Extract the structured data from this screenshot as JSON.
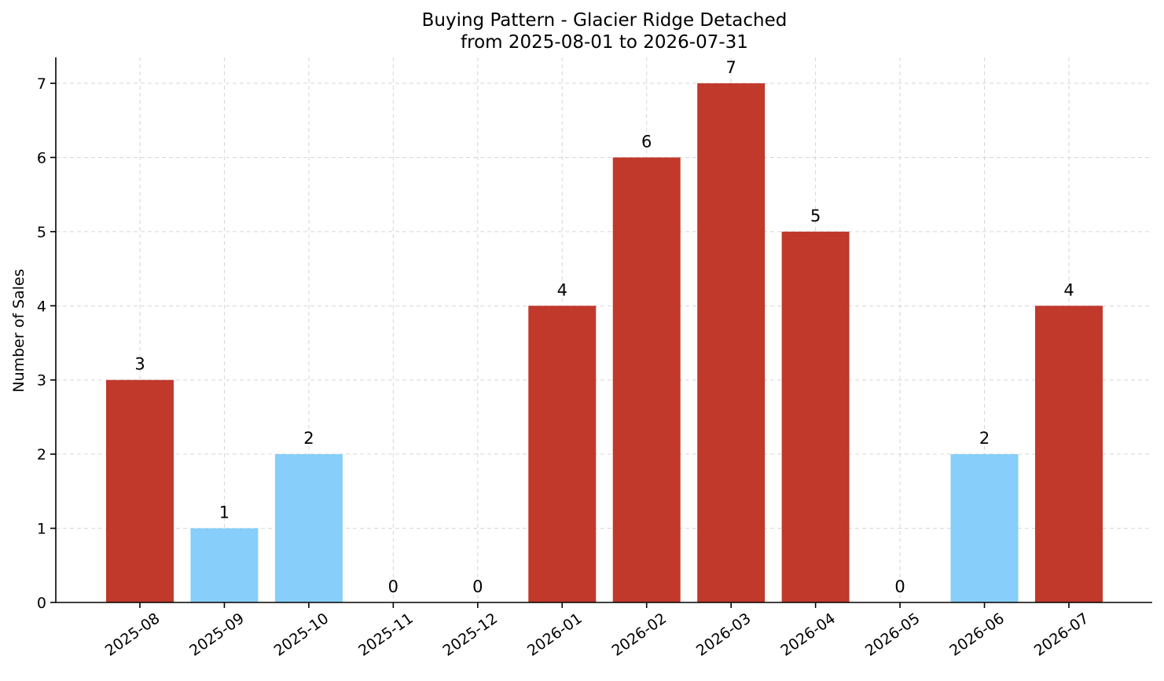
{
  "chart_data": {
    "type": "bar",
    "title": "Buying Pattern - Glacier Ridge Detached",
    "subtitle": "from 2025-08-01 to 2026-07-31",
    "xlabel": "",
    "ylabel": "Number of Sales",
    "categories": [
      "2025-08",
      "2025-09",
      "2025-10",
      "2025-11",
      "2025-12",
      "2026-01",
      "2026-02",
      "2026-03",
      "2026-04",
      "2026-05",
      "2026-06",
      "2026-07"
    ],
    "values": [
      3,
      1,
      2,
      0,
      0,
      4,
      6,
      7,
      5,
      0,
      2,
      4
    ],
    "bar_colors": [
      "#c0392b",
      "#87cefa",
      "#87cefa",
      "#87cefa",
      "#87cefa",
      "#c0392b",
      "#c0392b",
      "#c0392b",
      "#c0392b",
      "#87cefa",
      "#87cefa",
      "#c0392b"
    ],
    "ylim": [
      0,
      7.35
    ],
    "yticks": [
      0,
      1,
      2,
      3,
      4,
      5,
      6,
      7
    ],
    "grid": true,
    "data_labels": true,
    "legend": "none"
  }
}
